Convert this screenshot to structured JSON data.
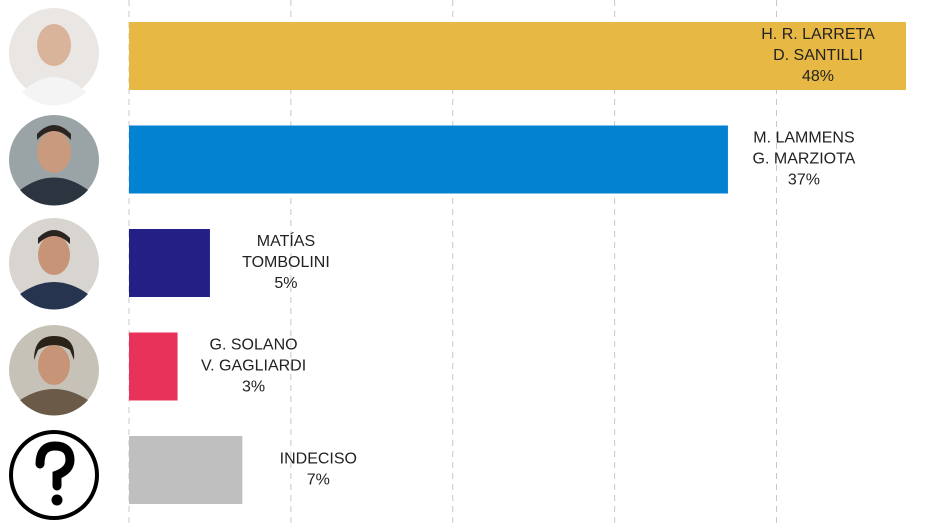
{
  "chart_data": {
    "type": "bar",
    "orientation": "horizontal",
    "categories": [
      [
        "H. R. LARRETA",
        "D. SANTILLI"
      ],
      [
        "M. LAMMENS",
        "G. MARZIOTA"
      ],
      [
        "MATÍAS",
        "TOMBOLINI"
      ],
      [
        "G. SOLANO",
        "V. GAGLIARDI"
      ],
      [
        "INDECISO"
      ]
    ],
    "values": [
      48,
      37,
      5,
      3,
      7
    ],
    "value_labels": [
      "48%",
      "37%",
      "5%",
      "3%",
      "7%"
    ],
    "colors": [
      "#e8b844",
      "#0282d1",
      "#231f84",
      "#e8325a",
      "#bfbfbf"
    ],
    "xlim": [
      0,
      48
    ],
    "xticks": [
      0,
      10,
      20,
      30,
      40
    ],
    "grid": true
  }
}
